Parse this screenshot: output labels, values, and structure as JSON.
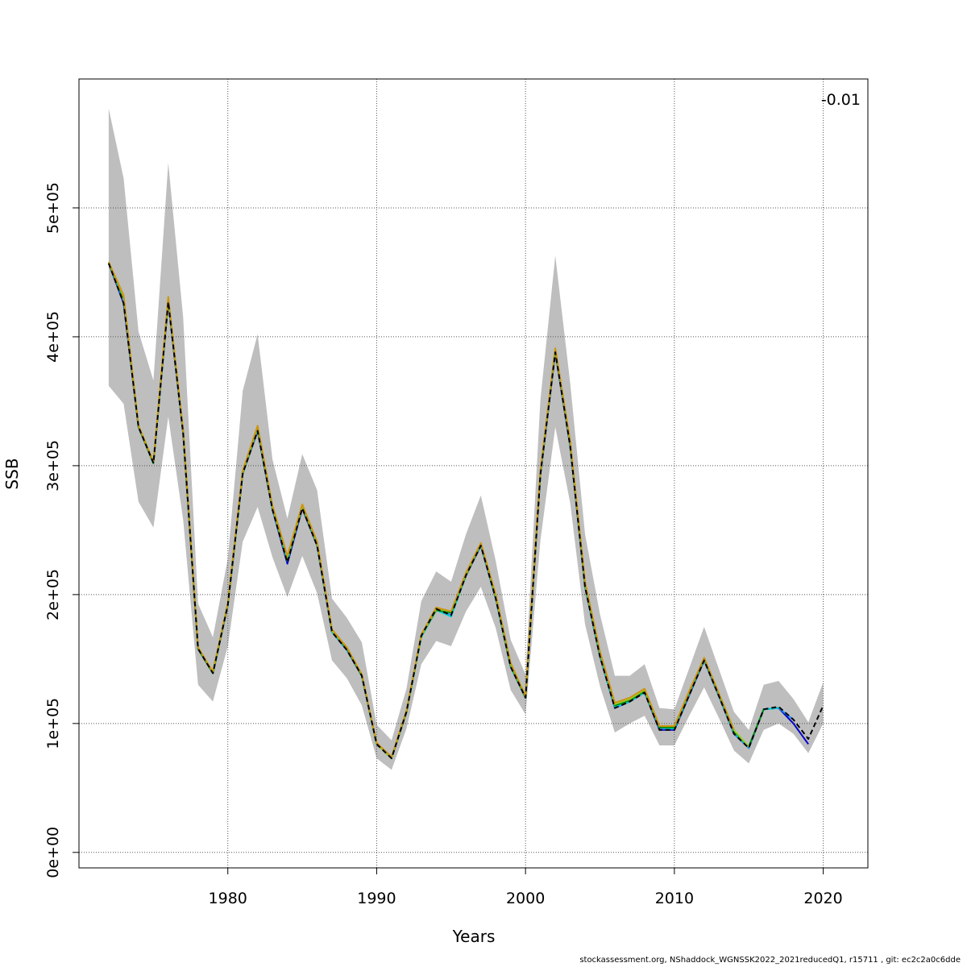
{
  "chart_data": {
    "type": "line",
    "xlabel": "Years",
    "ylabel": "SSB",
    "xlim": [
      1970,
      2023
    ],
    "ylim": [
      -12000,
      600000
    ],
    "x_ticks": [
      {
        "value": 1980,
        "label": "1980"
      },
      {
        "value": 1990,
        "label": "1990"
      },
      {
        "value": 2000,
        "label": "2000"
      },
      {
        "value": 2010,
        "label": "2010"
      },
      {
        "value": 2020,
        "label": "2020"
      }
    ],
    "y_ticks": [
      {
        "value": 0,
        "label": "0e+00"
      },
      {
        "value": 100000,
        "label": "1e+05"
      },
      {
        "value": 200000,
        "label": "2e+05"
      },
      {
        "value": 300000,
        "label": "3e+05"
      },
      {
        "value": 400000,
        "label": "4e+05"
      },
      {
        "value": 500000,
        "label": "5e+05"
      }
    ],
    "grid": true,
    "annotation": "-0.01",
    "colors": {
      "band": "#bebebe",
      "base_line": "#000000",
      "retro_1": "#0000cd",
      "retro_2": "#1e90ff",
      "retro_3": "#00ced1",
      "retro_4": "#008b00",
      "retro_5": "#9acd32",
      "retro_6": "#cd950c"
    },
    "band": {
      "x": [
        1972,
        1973,
        1974,
        1975,
        1976,
        1977,
        1978,
        1979,
        1980,
        1981,
        1982,
        1983,
        1984,
        1985,
        1986,
        1987,
        1988,
        1989,
        1990,
        1991,
        1992,
        1993,
        1994,
        1995,
        1996,
        1997,
        1998,
        1999,
        2000,
        2001,
        2002,
        2003,
        2004,
        2005,
        2006,
        2007,
        2008,
        2009,
        2010,
        2011,
        2012,
        2013,
        2014,
        2015,
        2016,
        2017,
        2018,
        2019,
        2020
      ],
      "upper": [
        577000,
        523000,
        404000,
        366000,
        535000,
        415000,
        193000,
        167000,
        228000,
        358000,
        402000,
        305000,
        259000,
        309000,
        281000,
        197000,
        182000,
        163000,
        99000,
        87000,
        127000,
        195000,
        218000,
        210000,
        247000,
        277000,
        226000,
        165000,
        138000,
        351000,
        463000,
        364000,
        247000,
        185000,
        137000,
        137000,
        146000,
        112000,
        111000,
        143000,
        175000,
        142000,
        109000,
        95000,
        130000,
        133000,
        119000,
        101000,
        132000
      ],
      "lower": [
        362000,
        348000,
        272000,
        252000,
        338000,
        258000,
        130000,
        117000,
        160000,
        241000,
        268000,
        229000,
        198000,
        230000,
        201000,
        149000,
        135000,
        114000,
        73000,
        64000,
        96000,
        146000,
        164000,
        160000,
        187000,
        206000,
        174000,
        126000,
        107000,
        242000,
        330000,
        271000,
        177000,
        129000,
        93000,
        100000,
        106000,
        83000,
        83000,
        106000,
        128000,
        104000,
        79000,
        69000,
        95000,
        100000,
        92000,
        77000,
        100000
      ]
    },
    "series": [
      {
        "x": [
          1972,
          1973,
          1974,
          1975,
          1976,
          1977,
          1978,
          1979,
          1980,
          1981,
          1982,
          1983,
          1984,
          1985,
          1986,
          1987,
          1988,
          1989,
          1990,
          1991,
          1992,
          1993,
          1994,
          1995,
          1996,
          1997,
          1998,
          1999,
          2000,
          2001,
          2002,
          2003,
          2004,
          2005,
          2006,
          2007,
          2008,
          2009,
          2010,
          2011,
          2012,
          2013,
          2014,
          2015,
          2016,
          2017,
          2018,
          2019,
          2020
        ],
        "values": [
          457000,
          426000,
          330000,
          302000,
          427000,
          325000,
          158000,
          139000,
          192000,
          294000,
          327000,
          266000,
          225000,
          267000,
          238000,
          171000,
          157000,
          137000,
          84000,
          73000,
          109000,
          168000,
          189000,
          184000,
          215000,
          238000,
          197000,
          144000,
          120000,
          293000,
          388000,
          315000,
          206000,
          152000,
          112000,
          117000,
          124000,
          95000,
          95000,
          122000,
          149000,
          121000,
          92000,
          81000,
          111000,
          113000,
          103000,
          88000,
          114000
        ]
      },
      {
        "x": [
          1972,
          1973,
          1974,
          1975,
          1976,
          1977,
          1978,
          1979,
          1980,
          1981,
          1982,
          1983,
          1984,
          1985,
          1986,
          1987,
          1988,
          1989,
          1990,
          1991,
          1992,
          1993,
          1994,
          1995,
          1996,
          1997,
          1998,
          1999,
          2000,
          2001,
          2002,
          2003,
          2004,
          2005,
          2006,
          2007,
          2008,
          2009,
          2010,
          2011,
          2012,
          2013,
          2014,
          2015,
          2016,
          2017,
          2018,
          2019
        ],
        "values": [
          457000,
          426000,
          330000,
          302000,
          427000,
          325000,
          158000,
          139000,
          192000,
          294000,
          327000,
          266000,
          224000,
          267000,
          238000,
          171000,
          157000,
          137000,
          84000,
          73000,
          109000,
          168000,
          189000,
          184000,
          215000,
          238000,
          197000,
          144000,
          120000,
          293000,
          388000,
          315000,
          206000,
          152000,
          112000,
          117000,
          124000,
          95000,
          95000,
          122000,
          149000,
          121000,
          92000,
          81000,
          111000,
          112000,
          100000,
          84000
        ]
      },
      {
        "x": [
          1972,
          1973,
          1974,
          1975,
          1976,
          1977,
          1978,
          1979,
          1980,
          1981,
          1982,
          1983,
          1984,
          1985,
          1986,
          1987,
          1988,
          1989,
          1990,
          1991,
          1992,
          1993,
          1994,
          1995,
          1996,
          1997,
          1998,
          1999,
          2000,
          2001,
          2002,
          2003,
          2004,
          2005,
          2006,
          2007,
          2008,
          2009,
          2010,
          2011,
          2012,
          2013,
          2014,
          2015,
          2016,
          2017,
          2018
        ],
        "values": [
          457000,
          428000,
          330000,
          302000,
          428000,
          325000,
          158000,
          139000,
          192000,
          294000,
          328000,
          266000,
          226000,
          268000,
          238000,
          171000,
          157000,
          137000,
          84000,
          73000,
          109000,
          168000,
          189000,
          184000,
          215000,
          238000,
          197000,
          144000,
          120000,
          293000,
          389000,
          316000,
          206000,
          152000,
          112000,
          117000,
          124000,
          96000,
          96000,
          123000,
          149000,
          121000,
          92000,
          81000,
          111000,
          112000,
          103000
        ]
      },
      {
        "x": [
          1972,
          1973,
          1974,
          1975,
          1976,
          1977,
          1978,
          1979,
          1980,
          1981,
          1982,
          1983,
          1984,
          1985,
          1986,
          1987,
          1988,
          1989,
          1990,
          1991,
          1992,
          1993,
          1994,
          1995,
          1996,
          1997,
          1998,
          1999,
          2000,
          2001,
          2002,
          2003,
          2004,
          2005,
          2006,
          2007,
          2008,
          2009,
          2010,
          2011,
          2012,
          2013,
          2014,
          2015,
          2016,
          2017
        ],
        "values": [
          457000,
          429000,
          330000,
          302000,
          428000,
          326000,
          158000,
          139000,
          192000,
          294000,
          328000,
          267000,
          227000,
          268000,
          239000,
          171000,
          158000,
          137000,
          84000,
          73000,
          109000,
          167000,
          188000,
          183000,
          215000,
          239000,
          197000,
          144000,
          120000,
          294000,
          389000,
          316000,
          207000,
          153000,
          113000,
          117000,
          124000,
          97000,
          96000,
          123000,
          150000,
          122000,
          93000,
          82000,
          111000,
          112000
        ]
      },
      {
        "x": [
          1972,
          1973,
          1974,
          1975,
          1976,
          1977,
          1978,
          1979,
          1980,
          1981,
          1982,
          1983,
          1984,
          1985,
          1986,
          1987,
          1988,
          1989,
          1990,
          1991,
          1992,
          1993,
          1994,
          1995,
          1996,
          1997,
          1998,
          1999,
          2000,
          2001,
          2002,
          2003,
          2004,
          2005,
          2006,
          2007,
          2008,
          2009,
          2010,
          2011,
          2012,
          2013,
          2014,
          2015,
          2016
        ],
        "values": [
          457000,
          430000,
          330000,
          302000,
          429000,
          326000,
          158000,
          139000,
          192000,
          294000,
          329000,
          267000,
          228000,
          268000,
          239000,
          172000,
          158000,
          137000,
          84000,
          73000,
          109000,
          168000,
          188000,
          186000,
          215000,
          239000,
          198000,
          145000,
          120000,
          294000,
          390000,
          317000,
          208000,
          154000,
          114000,
          118000,
          125000,
          97000,
          97000,
          124000,
          150000,
          122000,
          94000,
          82000,
          111000
        ]
      },
      {
        "x": [
          1972,
          1973,
          1974,
          1975,
          1976,
          1977,
          1978,
          1979,
          1980,
          1981,
          1982,
          1983,
          1984,
          1985,
          1986,
          1987,
          1988,
          1989,
          1990,
          1991,
          1992,
          1993,
          1994,
          1995,
          1996,
          1997,
          1998,
          1999,
          2000,
          2001,
          2002,
          2003,
          2004,
          2005,
          2006,
          2007,
          2008,
          2009,
          2010,
          2011,
          2012,
          2013,
          2014,
          2015
        ],
        "values": [
          458000,
          431000,
          331000,
          303000,
          430000,
          327000,
          159000,
          140000,
          193000,
          295000,
          330000,
          268000,
          229000,
          269000,
          240000,
          172000,
          159000,
          138000,
          84000,
          73000,
          110000,
          168000,
          189000,
          187000,
          216000,
          240000,
          199000,
          146000,
          121000,
          295000,
          391000,
          318000,
          209000,
          155000,
          115000,
          119000,
          126000,
          98000,
          98000,
          125000,
          151000,
          123000,
          95000,
          82000
        ]
      },
      {
        "x": [
          1972,
          1973,
          1974,
          1975,
          1976,
          1977,
          1978,
          1979,
          1980,
          1981,
          1982,
          1983,
          1984,
          1985,
          1986,
          1987,
          1988,
          1989,
          1990,
          1991,
          1992,
          1993,
          1994,
          1995,
          1996,
          1997,
          1998,
          1999,
          2000,
          2001,
          2002,
          2003,
          2004,
          2005,
          2006,
          2007,
          2008,
          2009,
          2010,
          2011,
          2012,
          2013,
          2014
        ],
        "values": [
          458000,
          432000,
          331000,
          303000,
          431000,
          327000,
          159000,
          140000,
          193000,
          296000,
          331000,
          269000,
          230000,
          270000,
          241000,
          173000,
          159000,
          138000,
          85000,
          74000,
          110000,
          169000,
          190000,
          187000,
          217000,
          240000,
          200000,
          147000,
          121000,
          296000,
          391000,
          319000,
          210000,
          156000,
          116000,
          120000,
          127000,
          98000,
          98000,
          125000,
          151000,
          123000,
          95000
        ]
      }
    ]
  },
  "footer": "stockassessment.org, NShaddock_WGNSSK2022_2021reducedQ1, r15711 , git: ec2c2a0c6dde"
}
